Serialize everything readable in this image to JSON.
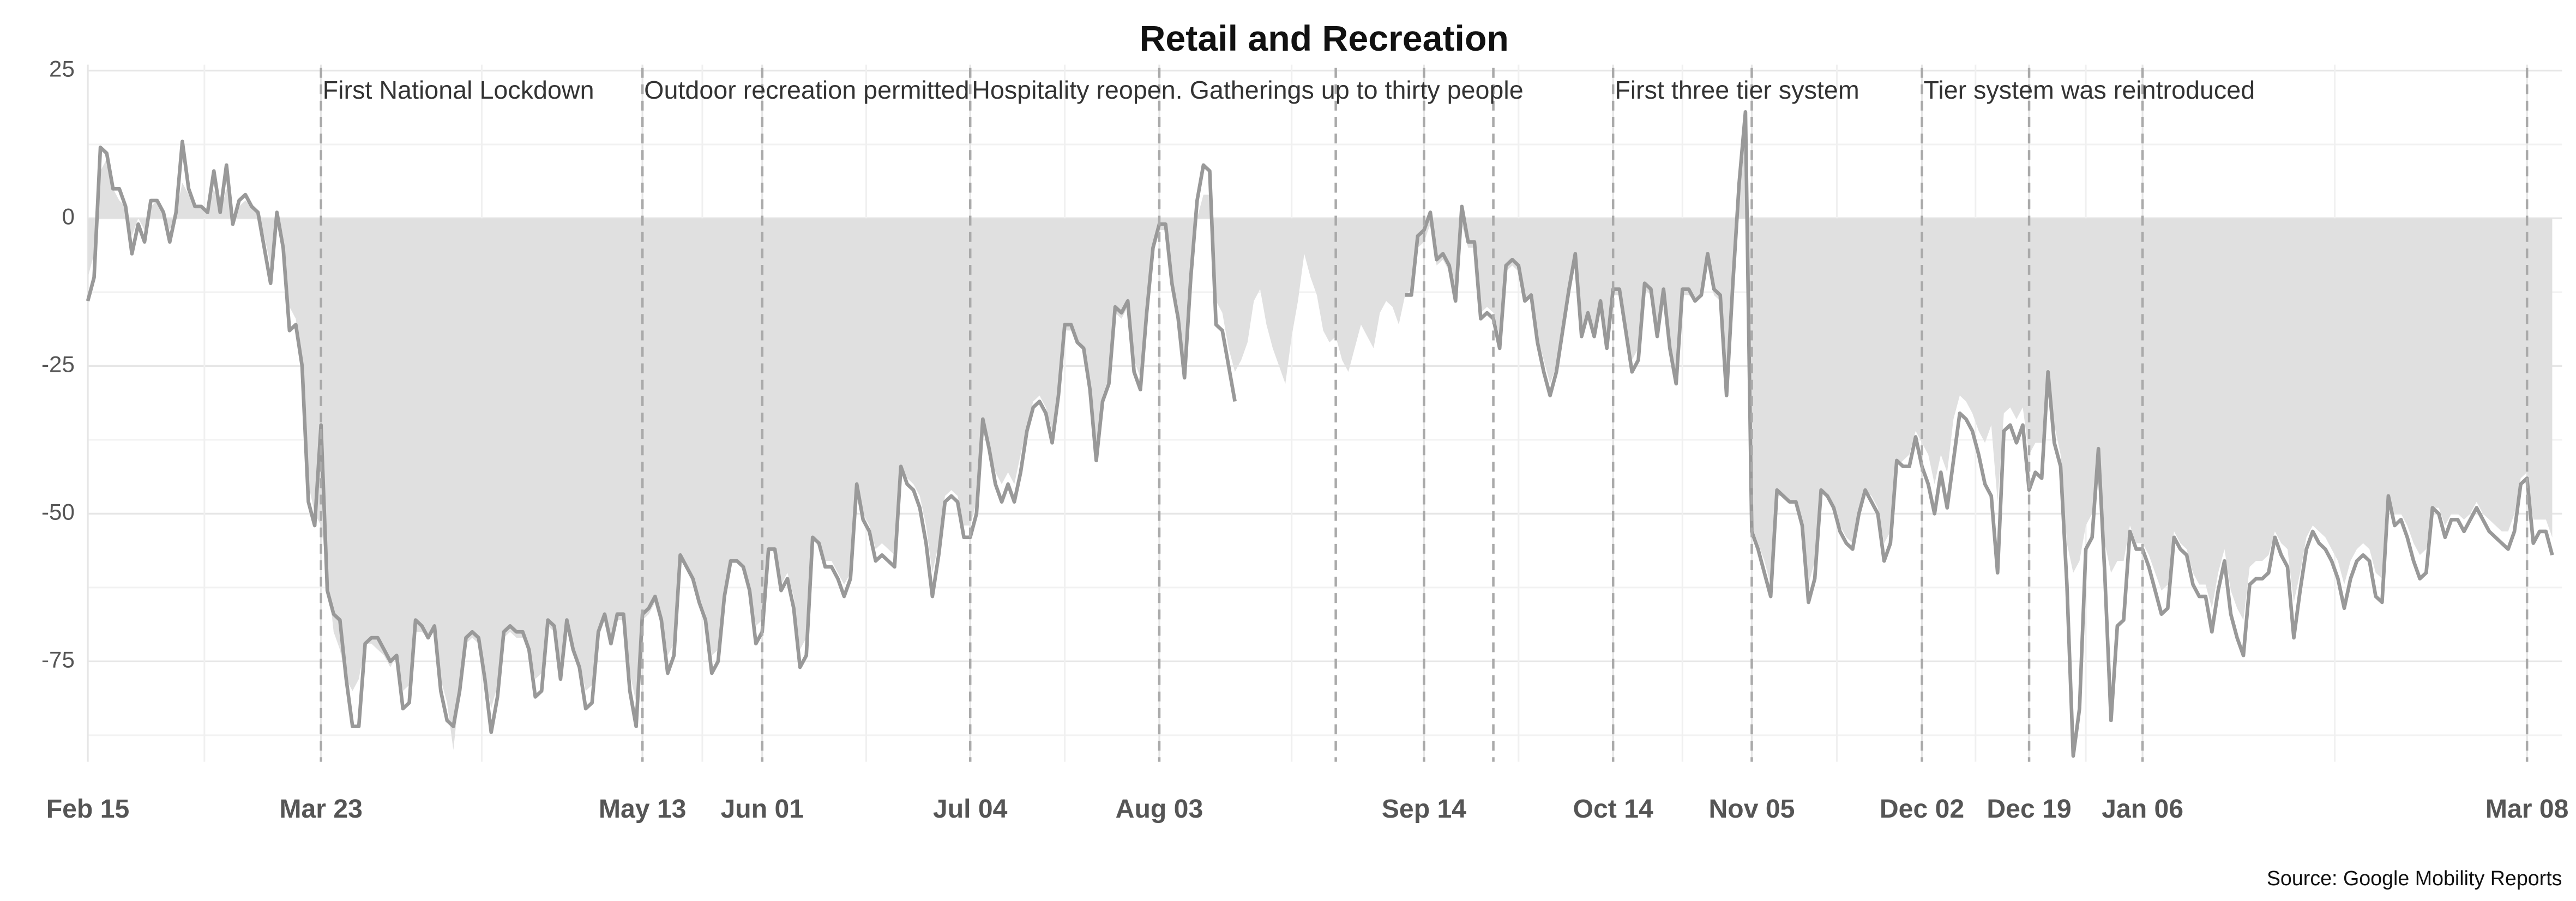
{
  "chart_data": {
    "type": "line",
    "title": "Retail and Recreation",
    "source": "Source: Google Mobility Reports",
    "categories": [
      "Feb 15",
      null,
      null,
      null,
      null,
      null,
      null,
      null,
      null,
      null,
      null,
      null,
      null,
      null,
      null,
      null,
      null,
      null,
      null,
      null,
      null,
      null,
      null,
      null,
      null,
      null,
      null,
      null,
      null,
      null,
      null,
      null,
      null,
      null,
      null,
      null,
      null,
      "Mar 23",
      null,
      null,
      null,
      null,
      null,
      null,
      null,
      null,
      null,
      null,
      null,
      null,
      null,
      null,
      null,
      null,
      null,
      null,
      null,
      null,
      null,
      null,
      null,
      null,
      null,
      null,
      null,
      null,
      null,
      null,
      null,
      null,
      null,
      null,
      null,
      null,
      null,
      null,
      null,
      null,
      null,
      null,
      null,
      null,
      null,
      null,
      null,
      null,
      null,
      null,
      "May 13",
      null,
      null,
      null,
      null,
      null,
      null,
      null,
      null,
      null,
      null,
      null,
      null,
      null,
      null,
      null,
      null,
      null,
      null,
      "Jun 01",
      null,
      null,
      null,
      null,
      null,
      null,
      null,
      null,
      null,
      null,
      null,
      null,
      null,
      null,
      null,
      null,
      null,
      null,
      null,
      null,
      null,
      null,
      null,
      null,
      null,
      null,
      null,
      null,
      null,
      null,
      null,
      null,
      "Jul 04",
      null,
      null,
      null,
      null,
      null,
      null,
      null,
      null,
      null,
      null,
      null,
      null,
      null,
      null,
      null,
      null,
      null,
      null,
      null,
      null,
      null,
      null,
      null,
      null,
      null,
      null,
      null,
      null,
      null,
      "Aug 03",
      null,
      null,
      null,
      null,
      null,
      null,
      null,
      null,
      null,
      null,
      null,
      null,
      null,
      null,
      null,
      null,
      null,
      null,
      null,
      null,
      null,
      null,
      null,
      null,
      null,
      null,
      null,
      null,
      null,
      null,
      null,
      null,
      null,
      null,
      null,
      null,
      null,
      null,
      null,
      null,
      null,
      "Sep 14",
      null,
      null,
      null,
      null,
      null,
      null,
      null,
      null,
      null,
      null,
      null,
      null,
      null,
      null,
      null,
      null,
      null,
      null,
      null,
      null,
      null,
      null,
      null,
      null,
      null,
      null,
      null,
      null,
      null,
      "Oct 14",
      null,
      null,
      null,
      null,
      null,
      null,
      null,
      null,
      null,
      null,
      null,
      null,
      null,
      null,
      null,
      null,
      null,
      null,
      null,
      null,
      null,
      "Nov 05",
      null,
      null,
      null,
      null,
      null,
      null,
      null,
      null,
      null,
      null,
      null,
      null,
      null,
      null,
      null,
      null,
      null,
      null,
      null,
      null,
      null,
      null,
      null,
      null,
      null,
      null,
      "Dec 02",
      null,
      null,
      null,
      null,
      null,
      null,
      null,
      null,
      null,
      null,
      null,
      null,
      null,
      null,
      null,
      null,
      "Dec 19",
      null,
      null,
      null,
      null,
      null,
      null,
      null,
      null,
      null,
      null,
      null,
      null,
      null,
      null,
      null,
      null,
      null,
      "Jan 06",
      null,
      null,
      null,
      null,
      null,
      null,
      null,
      null,
      null,
      null,
      null,
      null,
      null,
      null,
      null,
      null,
      null,
      null,
      null,
      null,
      null,
      null,
      null,
      null,
      null,
      null,
      null,
      null,
      null,
      null,
      null,
      null,
      null,
      null,
      null,
      null,
      null,
      null,
      null,
      null,
      null,
      null,
      null,
      null,
      null,
      null,
      null,
      null,
      null,
      null,
      null,
      null,
      null,
      null,
      null,
      null,
      null,
      null,
      null,
      null,
      "Mar 08",
      null,
      null,
      null,
      null
    ],
    "series": [
      {
        "kind": "area",
        "color": "#e0e0e0",
        "values": [
          -10,
          -6,
          8,
          10,
          5,
          3,
          2,
          -3,
          0,
          -2,
          2,
          3,
          1,
          -2,
          1,
          6,
          4,
          2,
          2,
          1,
          5,
          1,
          5,
          0,
          2,
          3,
          2,
          1,
          -3,
          -8,
          0,
          -4,
          -15,
          -17,
          -25,
          -45,
          -50,
          -52,
          -60,
          -70,
          -73,
          -78,
          -80,
          -78,
          -72,
          -72,
          -73,
          -74,
          -76,
          -74,
          -80,
          -79,
          -70,
          -70,
          -71,
          -70,
          -78,
          -82,
          -90,
          -80,
          -72,
          -71,
          -72,
          -77,
          -83,
          -79,
          -71,
          -70,
          -71,
          -71,
          -73,
          -78,
          -77,
          -69,
          -70,
          -76,
          -69,
          -73,
          -75,
          -80,
          -79,
          -71,
          -68,
          -71,
          -68,
          -68,
          -77,
          -82,
          -68,
          -67,
          -65,
          -68,
          -74,
          -72,
          -58,
          -59,
          -61,
          -64,
          -67,
          -74,
          -73,
          -64,
          -58,
          -58,
          -59,
          -62,
          -69,
          -68,
          -56,
          -56,
          -62,
          -60,
          -64,
          -73,
          -71,
          -54,
          -55,
          -58,
          -58,
          -60,
          -62,
          -60,
          -45,
          -50,
          -52,
          -56,
          -55,
          -56,
          -57,
          -42,
          -44,
          -45,
          -47,
          -52,
          -60,
          -55,
          -47,
          -46,
          -47,
          -52,
          -52,
          -48,
          -36,
          -38,
          -43,
          -45,
          -43,
          -45,
          -40,
          -35,
          -31,
          -30,
          -32,
          -36,
          -29,
          -19,
          -19,
          -21,
          -22,
          -28,
          -38,
          -30,
          -27,
          -16,
          -17,
          -15,
          -24,
          -27,
          -16,
          -6,
          -2,
          -2,
          -10,
          -15,
          -24,
          -11,
          0,
          4,
          4,
          -14,
          -16,
          -22,
          -26,
          -24,
          -21,
          -14,
          -12,
          -18,
          -22,
          -25,
          -28,
          -20,
          -14,
          -6,
          -10,
          -13,
          -19,
          -21,
          -20,
          -24,
          -26,
          -22,
          -18,
          -20,
          -22,
          -16,
          -14,
          -15,
          -18,
          -13,
          -12,
          -5,
          -4,
          -1,
          -8,
          -7,
          -9,
          -13,
          -1,
          -5,
          -5,
          -16,
          -15,
          -16,
          -20,
          -9,
          -8,
          -9,
          -14,
          -13,
          -20,
          -24,
          -28,
          -25,
          -19,
          -12,
          -7,
          -19,
          -16,
          -19,
          -15,
          -21,
          -13,
          -13,
          -18,
          -24,
          -22,
          -12,
          -13,
          -19,
          -13,
          -21,
          -26,
          -13,
          -13,
          -14,
          -13,
          -8,
          -13,
          -14,
          -27,
          -12,
          3,
          14,
          -52,
          -55,
          -58,
          -62,
          -47,
          -47,
          -48,
          -48,
          -51,
          -62,
          -58,
          -46,
          -47,
          -49,
          -52,
          -54,
          -55,
          -50,
          -46,
          -47,
          -49,
          -55,
          -53,
          -42,
          -41,
          -40,
          -36,
          -38,
          -40,
          -45,
          -40,
          -43,
          -34,
          -30,
          -31,
          -33,
          -36,
          -38,
          -35,
          -48,
          -33,
          -32,
          -34,
          -32,
          -40,
          -38,
          -38,
          -27,
          -35,
          -40,
          -55,
          -60,
          -58,
          -52,
          -50,
          -42,
          -55,
          -60,
          -58,
          -58,
          -52,
          -55,
          -55,
          -57,
          -60,
          -63,
          -62,
          -53,
          -55,
          -56,
          -60,
          -62,
          -62,
          -66,
          -60,
          -56,
          -63,
          -66,
          -68,
          -59,
          -58,
          -58,
          -57,
          -53,
          -55,
          -56,
          -65,
          -60,
          -54,
          -52,
          -53,
          -54,
          -56,
          -58,
          -62,
          -58,
          -56,
          -55,
          -56,
          -60,
          -61,
          -48,
          -50,
          -50,
          -52,
          -55,
          -57,
          -56,
          -49,
          -49,
          -52,
          -50,
          -50,
          -51,
          -50,
          -48,
          -50,
          -51,
          -52,
          -53,
          -53,
          -50,
          -44,
          -43,
          -51,
          -51,
          -51,
          -54
        ]
      },
      {
        "kind": "line",
        "color": "#999999",
        "values": [
          -14,
          -10,
          12,
          11,
          5,
          5,
          2,
          -6,
          -1,
          -4,
          3,
          3,
          1,
          -4,
          1,
          13,
          5,
          2,
          2,
          1,
          8,
          1,
          9,
          -1,
          3,
          4,
          2,
          1,
          -5,
          -11,
          1,
          -5,
          -19,
          -18,
          -25,
          -48,
          -52,
          -35,
          -63,
          -67,
          -68,
          -78,
          -86,
          -86,
          -72,
          -71,
          -71,
          -73,
          -75,
          -74,
          -83,
          -82,
          -68,
          -69,
          -71,
          -69,
          -80,
          -85,
          -86,
          -80,
          -71,
          -70,
          -71,
          -78,
          -87,
          -81,
          -70,
          -69,
          -70,
          -70,
          -73,
          -81,
          -80,
          -68,
          -69,
          -78,
          -68,
          -73,
          -76,
          -83,
          -82,
          -70,
          -67,
          -72,
          -67,
          -67,
          -80,
          -86,
          -67,
          -66,
          -64,
          -68,
          -77,
          -74,
          -57,
          -59,
          -61,
          -65,
          -68,
          -77,
          -75,
          -64,
          -58,
          -58,
          -59,
          -63,
          -72,
          -70,
          -56,
          -56,
          -63,
          -61,
          -66,
          -76,
          -74,
          -54,
          -55,
          -59,
          -59,
          -61,
          -64,
          -61,
          -45,
          -51,
          -53,
          -58,
          -57,
          -58,
          -59,
          -42,
          -45,
          -46,
          -49,
          -55,
          -64,
          -57,
          -48,
          -47,
          -48,
          -54,
          -54,
          -50,
          -34,
          -39,
          -45,
          -48,
          -45,
          -48,
          -43,
          -36,
          -32,
          -31,
          -33,
          -38,
          -30,
          -18,
          -18,
          -21,
          -22,
          -29,
          -41,
          -31,
          -28,
          -15,
          -16,
          -14,
          -26,
          -29,
          -16,
          -5,
          -1,
          -1,
          -11,
          -17,
          -27,
          -10,
          3,
          9,
          8,
          -18,
          -19,
          -25,
          -31,
          null,
          null,
          null,
          null,
          null,
          null,
          null,
          null,
          null,
          null,
          null,
          null,
          null,
          null,
          null,
          null,
          null,
          null,
          null,
          null,
          null,
          null,
          null,
          null,
          null,
          null,
          -13,
          -13,
          -3,
          -2,
          1,
          -7,
          -6,
          -8,
          -14,
          2,
          -4,
          -4,
          -17,
          -16,
          -17,
          -22,
          -8,
          -7,
          -8,
          -14,
          -13,
          -21,
          -26,
          -30,
          -26,
          -19,
          -12,
          -6,
          -20,
          -16,
          -20,
          -14,
          -22,
          -12,
          -12,
          -19,
          -26,
          -24,
          -11,
          -12,
          -20,
          -12,
          -22,
          -28,
          -12,
          -12,
          -14,
          -13,
          -6,
          -12,
          -13,
          -30,
          -11,
          6,
          18,
          -53,
          -56,
          -60,
          -64,
          -46,
          -47,
          -48,
          -48,
          -52,
          -65,
          -61,
          -46,
          -47,
          -49,
          -53,
          -55,
          -56,
          -50,
          -46,
          -48,
          -50,
          -58,
          -55,
          -41,
          -42,
          -42,
          -37,
          -42,
          -45,
          -50,
          -43,
          -49,
          -41,
          -33,
          -34,
          -36,
          -40,
          -45,
          -47,
          -60,
          -36,
          -35,
          -38,
          -35,
          -46,
          -43,
          -44,
          -26,
          -38,
          -42,
          -62,
          -91,
          -83,
          -56,
          -54,
          -39,
          -60,
          -85,
          -69,
          -68,
          -53,
          -56,
          -56,
          -59,
          -63,
          -67,
          -66,
          -54,
          -56,
          -57,
          -62,
          -64,
          -64,
          -70,
          -63,
          -58,
          -67,
          -71,
          -74,
          -62,
          -61,
          -61,
          -60,
          -54,
          -57,
          -59,
          -71,
          -63,
          -56,
          -53,
          -55,
          -56,
          -58,
          -61,
          -66,
          -61,
          -58,
          -57,
          -58,
          -64,
          -65,
          -47,
          -52,
          -51,
          -54,
          -58,
          -61,
          -60,
          -49,
          -50,
          -54,
          -51,
          -51,
          -53,
          -51,
          -49,
          -51,
          -53,
          -54,
          -55,
          -56,
          -53,
          -45,
          -44,
          -55,
          -53,
          -53,
          -57
        ]
      }
    ],
    "ylim": [
      -92,
      26
    ],
    "yticks": [
      25,
      0,
      -25,
      -50,
      -75
    ],
    "grid": true,
    "annotations": [
      {
        "text": "First National Lockdown",
        "x": "Mar 23"
      },
      {
        "text": "Outdoor recreation permitted",
        "x": "May 13"
      },
      {
        "text": "Hospitality reopen. Gatherings up to thirty people",
        "x": "Jul 04"
      },
      {
        "text": "First three tier system",
        "x": "Oct 14"
      },
      {
        "text": "Tier system was reintroduced",
        "x": "Dec 02"
      }
    ]
  }
}
